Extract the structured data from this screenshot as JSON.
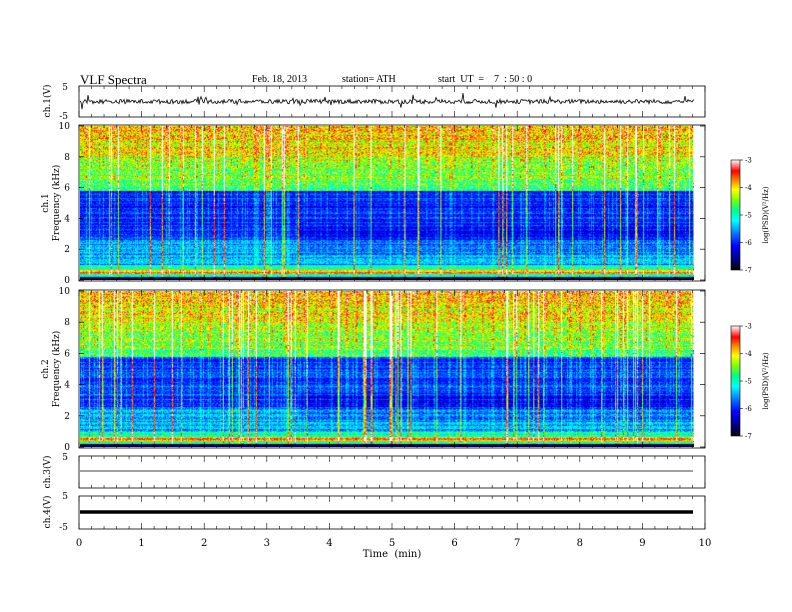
{
  "header": {
    "title": "VLF  Spectra",
    "date": "Feb. 18, 2013",
    "station": "station= ATH",
    "start_ut": "start  UT  =    7  : 50 : 0"
  },
  "chart_data": [
    {
      "type": "line",
      "panel": "ch1-waveform",
      "ylabel": "ch.1(V)",
      "ylim": [
        -5,
        5
      ],
      "yticks": [
        "5",
        "-5"
      ],
      "note_values": "noisy waveform around 0 V with amplitude roughly ±1 V and sparse spikes to about ±2 V"
    },
    {
      "type": "heatmap",
      "panel": "ch1-spectrogram",
      "ylabel_channel": "ch.1",
      "ylabel": "Frequency  (kHz)",
      "ylim": [
        0,
        10
      ],
      "yticks": [
        "0",
        "2",
        "4",
        "6",
        "8",
        "10"
      ],
      "colorbar": {
        "label": "log(PSD)(V²/Hz)",
        "range": [
          -7,
          -3
        ],
        "ticks": [
          "-3",
          "-4",
          "-5",
          "-6",
          "-7"
        ]
      }
    },
    {
      "type": "heatmap",
      "panel": "ch2-spectrogram",
      "ylabel_channel": "ch.2",
      "ylabel": "Frequency  (kHz)",
      "ylim": [
        0,
        10
      ],
      "yticks": [
        "0",
        "2",
        "4",
        "6",
        "8",
        "10"
      ],
      "colorbar": {
        "label": "log(PSD)(V²/Hz)",
        "range": [
          -7,
          -3
        ],
        "ticks": [
          "-3",
          "-4",
          "-5",
          "-6",
          "-7"
        ]
      }
    },
    {
      "type": "line",
      "panel": "ch3-waveform",
      "ylabel": "ch.3(V)",
      "ylim": [
        -5,
        5
      ],
      "yticks": [
        "5"
      ],
      "note_values": "flat trace near -1 V"
    },
    {
      "type": "line",
      "panel": "ch4-waveform",
      "ylabel": "ch.4(V)",
      "ylim": [
        -5,
        5
      ],
      "yticks": [
        "5",
        "-5"
      ],
      "note_values": "thick flat trace near 0 V"
    }
  ],
  "xaxis": {
    "label": "Time  (min)",
    "range": [
      0,
      10
    ],
    "ticks": [
      "0",
      "1",
      "2",
      "3",
      "4",
      "5",
      "6",
      "7",
      "8",
      "9",
      "10"
    ],
    "data_end": 9.83
  },
  "colors": {
    "colormap": [
      "#000000",
      "#00008b",
      "#0000ff",
      "#0080ff",
      "#00ffff",
      "#00ff80",
      "#80ff00",
      "#ffff00",
      "#ff8000",
      "#ff0000",
      "#ffffff"
    ]
  }
}
